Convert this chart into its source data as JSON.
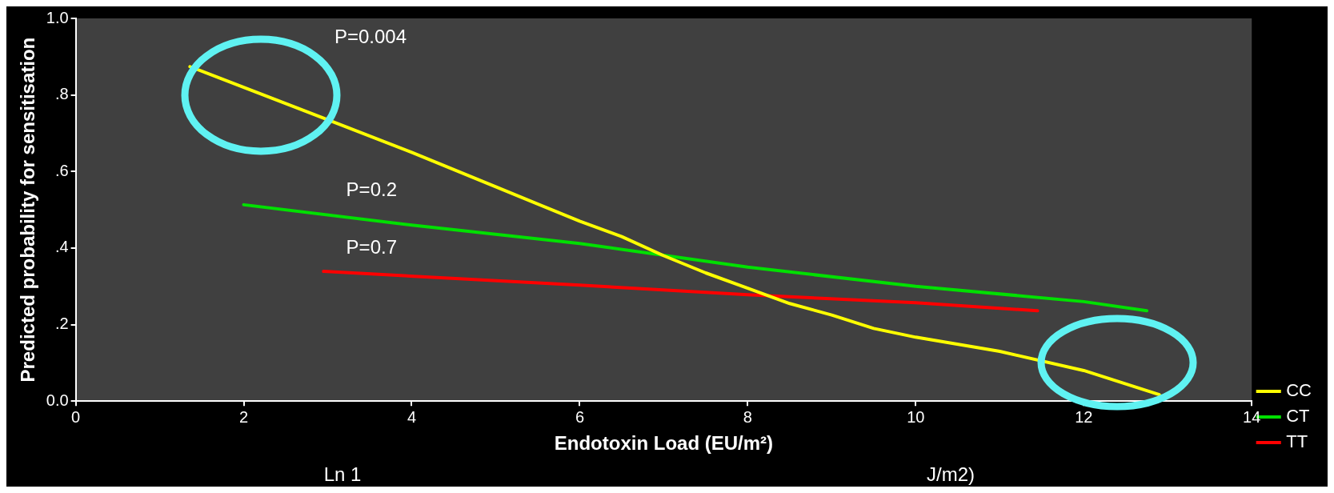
{
  "chart_data": {
    "type": "line",
    "xlabel": "Endotoxin Load (EU/m²)",
    "ylabel": "Predicted probability for sensitisation",
    "xlim": [
      0,
      14
    ],
    "xticks": [
      0,
      2,
      4,
      6,
      8,
      10,
      12,
      14
    ],
    "ylim": [
      0,
      1
    ],
    "yticks": [
      {
        "value": 0,
        "label": "0.0"
      },
      {
        "value": 0.2,
        "label": ".2"
      },
      {
        "value": 0.4,
        "label": ".4"
      },
      {
        "value": 0.6,
        "label": ".6"
      },
      {
        "value": 0.8,
        "label": ".8"
      },
      {
        "value": 1,
        "label": "1.0"
      }
    ],
    "series": [
      {
        "name": "CC",
        "color": "#ffff00",
        "x": [
          1.36,
          2,
          3,
          4,
          5,
          6,
          6.5,
          7,
          7.5,
          8,
          8.5,
          9,
          9.5,
          10,
          11,
          12,
          12.9
        ],
        "values": [
          0.874,
          0.82,
          0.735,
          0.65,
          0.56,
          0.47,
          0.43,
          0.38,
          0.335,
          0.295,
          0.255,
          0.225,
          0.19,
          0.167,
          0.13,
          0.08,
          0.017
        ]
      },
      {
        "name": "CT",
        "color": "#00e000",
        "x": [
          2,
          4,
          6,
          8,
          10,
          12,
          12.75
        ],
        "values": [
          0.513,
          0.46,
          0.412,
          0.35,
          0.3,
          0.26,
          0.236
        ]
      },
      {
        "name": "TT",
        "color": "#ff0000",
        "x": [
          2.95,
          6,
          8,
          10,
          11.45
        ],
        "values": [
          0.339,
          0.303,
          0.278,
          0.257,
          0.236
        ]
      }
    ],
    "annotations": [
      "P=0.004",
      "P=0.2",
      "P=0.7",
      "Ln 1",
      "J/m2)"
    ],
    "grid": false,
    "legend": "right",
    "marker": "none",
    "line_style": "solid"
  }
}
